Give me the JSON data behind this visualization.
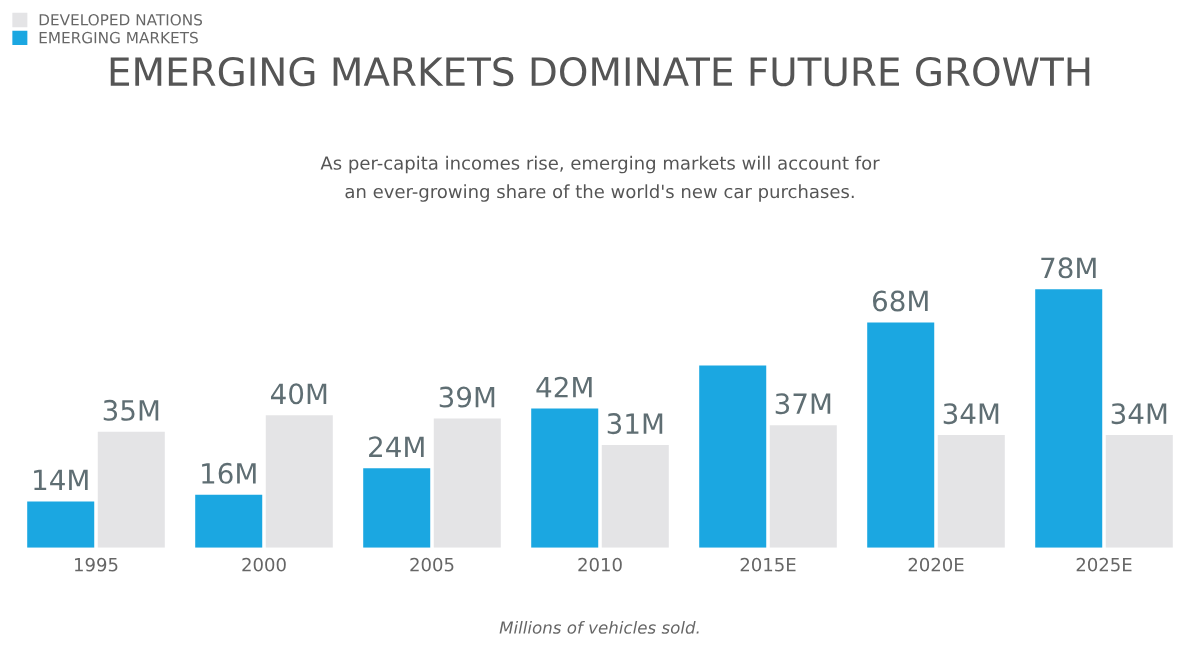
{
  "chart_data": {
    "type": "bar",
    "title": "EMERGING MARKETS DOMINATE FUTURE GROWTH",
    "subtitle": "As per-capita incomes rise, emerging markets will account for\nan ever-growing share of the world's new car purchases.",
    "categories": [
      "1995",
      "2000",
      "2005",
      "2010",
      "2015E",
      "2020E",
      "2025E"
    ],
    "series": [
      {
        "name": "EMERGING MARKETS",
        "color": "#1ba7e1",
        "values": [
          14,
          16,
          24,
          42,
          55,
          68,
          78
        ],
        "value_labels": [
          "14M",
          "16M",
          "24M",
          "42M",
          null,
          "68M",
          "78M"
        ]
      },
      {
        "name": "DEVELOPED NATIONS",
        "color": "#e4e4e6",
        "values": [
          35,
          40,
          39,
          31,
          37,
          34,
          34
        ],
        "value_labels": [
          "35M",
          "40M",
          "39M",
          "31M",
          "37M",
          "34M",
          "34M"
        ]
      }
    ],
    "annotations": [
      "Millions of vehicles sold."
    ],
    "legend": "top left",
    "grid": false
  }
}
